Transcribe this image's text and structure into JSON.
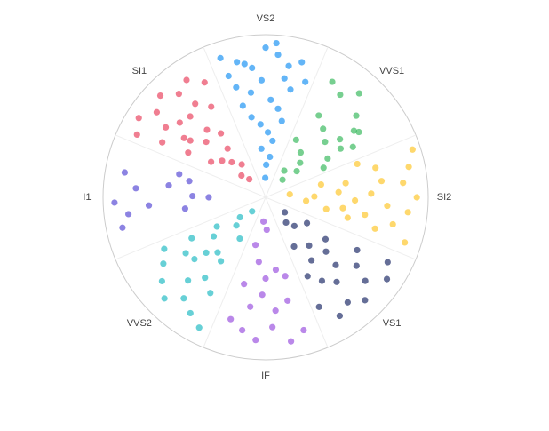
{
  "chart_data": {
    "type": "polar-scatter",
    "categories": [
      "VS2",
      "VVS1",
      "SI2",
      "VS1",
      "IF",
      "VVS2",
      "I1",
      "SI1"
    ],
    "rlim": [
      0,
      1
    ],
    "series": [
      {
        "color": "#2196f3",
        "theta": [
          -18,
          -12,
          -6,
          0,
          5,
          10,
          15,
          19,
          -15,
          -8,
          -2,
          3,
          8,
          13,
          -10,
          -4,
          2,
          7,
          -17,
          12,
          -5,
          1,
          6,
          -1,
          -14,
          9,
          -9,
          4
        ],
        "r": [
          0.9,
          0.85,
          0.8,
          0.92,
          0.88,
          0.82,
          0.86,
          0.75,
          0.7,
          0.65,
          0.72,
          0.6,
          0.55,
          0.68,
          0.5,
          0.45,
          0.4,
          0.35,
          0.78,
          0.48,
          0.3,
          0.2,
          0.25,
          0.12,
          0.58,
          0.74,
          0.83,
          0.95
        ]
      },
      {
        "color": "#3dbb61",
        "theta": [
          30,
          36,
          42,
          48,
          55,
          60,
          33,
          40,
          47,
          52,
          58,
          63,
          38,
          45,
          50,
          28,
          57,
          44,
          35,
          53
        ],
        "r": [
          0.82,
          0.78,
          0.86,
          0.75,
          0.7,
          0.62,
          0.6,
          0.55,
          0.5,
          0.58,
          0.45,
          0.4,
          0.35,
          0.3,
          0.25,
          0.4,
          0.55,
          0.15,
          0.2,
          0.68
        ]
      },
      {
        "color": "#fdc82f",
        "theta": [
          72,
          78,
          84,
          90,
          96,
          102,
          108,
          75,
          82,
          88,
          94,
          100,
          106,
          80,
          86,
          92,
          98,
          104,
          77,
          89,
          95,
          101,
          83,
          70
        ],
        "r": [
          0.95,
          0.9,
          0.85,
          0.93,
          0.88,
          0.8,
          0.9,
          0.7,
          0.72,
          0.65,
          0.75,
          0.62,
          0.7,
          0.5,
          0.45,
          0.55,
          0.48,
          0.52,
          0.35,
          0.3,
          0.25,
          0.38,
          0.15,
          0.6
        ]
      },
      {
        "color": "#23306b",
        "theta": [
          118,
          124,
          130,
          136,
          142,
          148,
          154,
          120,
          127,
          134,
          140,
          146,
          152,
          125,
          132,
          138,
          144,
          122,
          135,
          150,
          128,
          141
        ],
        "r": [
          0.85,
          0.9,
          0.8,
          0.88,
          0.82,
          0.86,
          0.75,
          0.65,
          0.7,
          0.6,
          0.68,
          0.62,
          0.55,
          0.45,
          0.5,
          0.4,
          0.48,
          0.3,
          0.25,
          0.35,
          0.15,
          0.2
        ]
      },
      {
        "color": "#9c55e0",
        "theta": [
          164,
          170,
          177,
          184,
          190,
          196,
          168,
          175,
          182,
          188,
          194,
          172,
          180,
          186,
          166,
          192,
          178,
          185
        ],
        "r": [
          0.85,
          0.9,
          0.8,
          0.88,
          0.83,
          0.78,
          0.65,
          0.7,
          0.6,
          0.68,
          0.55,
          0.45,
          0.5,
          0.4,
          0.5,
          0.3,
          0.2,
          0.15
        ]
      },
      {
        "color": "#26bcc4",
        "theta": [
          207,
          213,
          219,
          225,
          231,
          237,
          243,
          210,
          217,
          223,
          229,
          235,
          241,
          215,
          221,
          227,
          233,
          239,
          212,
          226,
          232,
          224
        ],
        "r": [
          0.9,
          0.85,
          0.8,
          0.88,
          0.82,
          0.75,
          0.7,
          0.68,
          0.62,
          0.7,
          0.58,
          0.6,
          0.52,
          0.48,
          0.45,
          0.5,
          0.4,
          0.35,
          0.3,
          0.25,
          0.2,
          0.12
        ]
      },
      {
        "color": "#5b4fd6",
        "theta": [
          258,
          263,
          268,
          274,
          280,
          266,
          277,
          285,
          262,
          271,
          282,
          270
        ],
        "r": [
          0.9,
          0.85,
          0.93,
          0.8,
          0.88,
          0.72,
          0.6,
          0.55,
          0.5,
          0.45,
          0.48,
          0.35
        ]
      },
      {
        "color": "#ea4763",
        "theta": [
          296,
          302,
          308,
          314,
          320,
          326,
          332,
          298,
          305,
          311,
          317,
          323,
          329,
          300,
          307,
          313,
          319,
          325,
          303,
          310,
          316,
          322,
          312,
          318,
          306,
          324
        ],
        "r": [
          0.88,
          0.92,
          0.85,
          0.9,
          0.83,
          0.87,
          0.8,
          0.72,
          0.75,
          0.7,
          0.68,
          0.72,
          0.65,
          0.55,
          0.58,
          0.5,
          0.55,
          0.48,
          0.4,
          0.35,
          0.3,
          0.38,
          0.2,
          0.15,
          0.62,
          0.25
        ]
      }
    ]
  }
}
